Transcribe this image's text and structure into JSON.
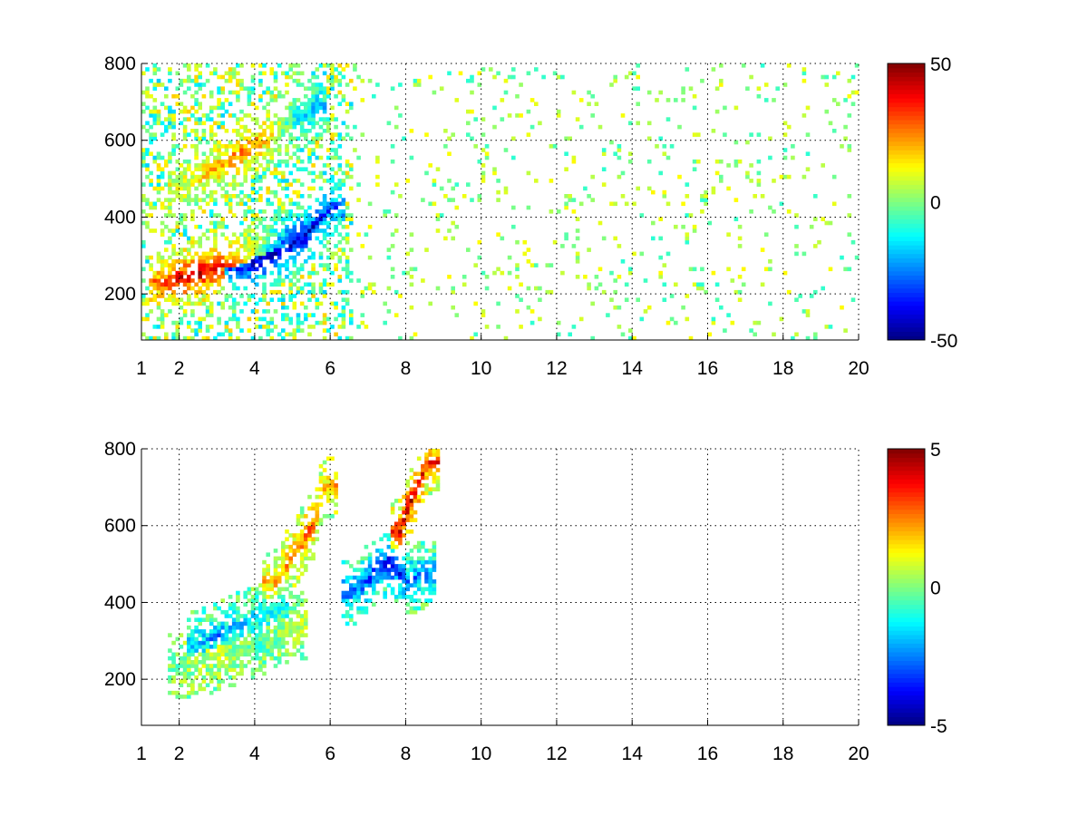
{
  "chart_data": [
    {
      "type": "heatmap",
      "title": "",
      "xlabel": "",
      "ylabel": "",
      "xlim": [
        1,
        20
      ],
      "ylim": [
        80,
        800
      ],
      "x_ticks": [
        1,
        2,
        4,
        6,
        8,
        10,
        12,
        14,
        16,
        18,
        20
      ],
      "y_ticks": [
        200,
        400,
        600,
        800
      ],
      "grid": true,
      "colormap": "jet",
      "colorbar": {
        "clim": [
          -50,
          50
        ],
        "ticks": [
          50,
          0,
          -50
        ],
        "placement": "right"
      },
      "features": [
        {
          "name": "lower-ridge",
          "x": [
            1.5,
            2.0,
            2.5,
            3.0,
            3.5,
            4.0,
            4.5,
            5.0
          ],
          "y": [
            225,
            235,
            250,
            265,
            280,
            300,
            320,
            340
          ],
          "values": [
            30,
            45,
            48,
            40,
            25,
            5,
            -20,
            -40
          ]
        },
        {
          "name": "upper-ridge",
          "x": [
            2.0,
            2.5,
            3.0,
            3.5,
            4.0,
            4.5,
            5.0,
            5.5
          ],
          "y": [
            480,
            500,
            530,
            560,
            590,
            620,
            650,
            680
          ],
          "values": [
            10,
            15,
            20,
            25,
            25,
            10,
            -10,
            -20
          ]
        },
        {
          "name": "blue-wing",
          "x": [
            3.5,
            4.0,
            4.5,
            5.0,
            5.5,
            6.0
          ],
          "y": [
            260,
            280,
            300,
            330,
            370,
            420
          ],
          "values": [
            -30,
            -45,
            -50,
            -45,
            -40,
            -30
          ]
        }
      ]
    },
    {
      "type": "heatmap",
      "title": "",
      "xlabel": "",
      "ylabel": "",
      "xlim": [
        1,
        20
      ],
      "ylim": [
        80,
        800
      ],
      "x_ticks": [
        1,
        2,
        4,
        6,
        8,
        10,
        12,
        14,
        16,
        18,
        20
      ],
      "y_ticks": [
        200,
        400,
        600,
        800
      ],
      "grid": true,
      "colormap": "jet",
      "colorbar": {
        "clim": [
          -5,
          5
        ],
        "ticks": [
          5,
          0,
          -5
        ],
        "placement": "right"
      },
      "features": [
        {
          "name": "lower-ridge",
          "x": [
            2.0,
            2.5,
            3.0,
            3.5,
            4.0,
            4.5,
            5.0
          ],
          "y": [
            230,
            240,
            255,
            270,
            290,
            310,
            335
          ],
          "values": [
            0,
            0.5,
            0.5,
            0,
            -0.5,
            0,
            0.5
          ]
        },
        {
          "name": "cyan-band",
          "x": [
            2.5,
            3.0,
            3.5,
            4.0,
            4.5
          ],
          "y": [
            290,
            310,
            330,
            350,
            380
          ],
          "values": [
            -2,
            -2.5,
            -2,
            -1.5,
            -1
          ]
        },
        {
          "name": "orange-column",
          "x": [
            4.5,
            5.0,
            5.5,
            5.8
          ],
          "y": [
            450,
            520,
            600,
            700
          ],
          "values": [
            2,
            2.5,
            3,
            2
          ]
        },
        {
          "name": "blue-patch",
          "x": [
            6.5,
            7.0,
            7.5,
            8.0,
            8.4
          ],
          "y": [
            420,
            460,
            500,
            450,
            470
          ],
          "values": [
            -3,
            -3.5,
            -4,
            -3,
            -2.5
          ]
        },
        {
          "name": "red-patch",
          "x": [
            7.8,
            8.0,
            8.3,
            8.5
          ],
          "y": [
            580,
            640,
            700,
            760
          ],
          "values": [
            4,
            4.5,
            4,
            3.5
          ]
        }
      ]
    }
  ]
}
